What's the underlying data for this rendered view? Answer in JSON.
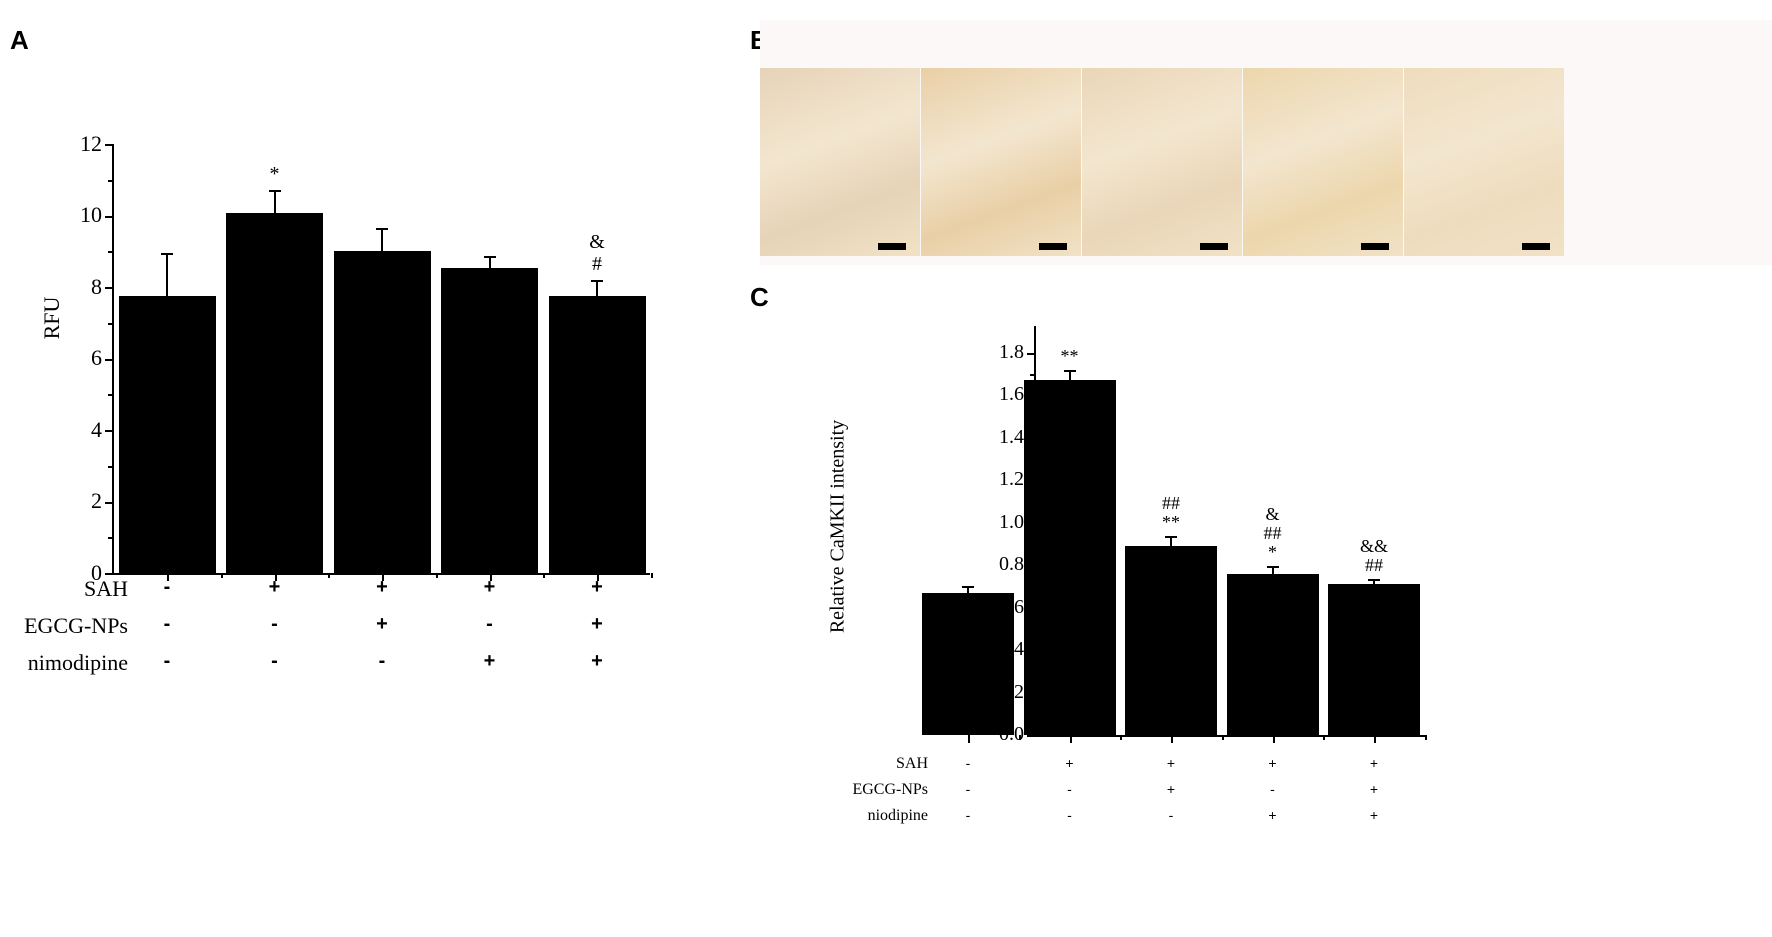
{
  "panels": {
    "A": {
      "letter": "A"
    },
    "B": {
      "letter": "B"
    },
    "C": {
      "letter": "C"
    }
  },
  "chart_data": [
    {
      "panel": "A",
      "type": "bar",
      "title": "",
      "xlabel": "",
      "ylabel": "RFU",
      "ylim": [
        0,
        12
      ],
      "yticks": [
        "0",
        "2",
        "4",
        "6",
        "8",
        "10",
        "12"
      ],
      "grid": false,
      "categories": [
        "SAH-/EGCG-NPs-/nimodipine-",
        "SAH+/EGCG-NPs-/nimodipine-",
        "SAH+/EGCG-NPs+/nimodipine-",
        "SAH+/EGCG-NPs-/nimodipine+",
        "SAH+/EGCG-NPs+/nimodipine+"
      ],
      "values": [
        7.74,
        10.08,
        9.0,
        8.54,
        7.75
      ],
      "error": [
        1.22,
        0.64,
        0.65,
        0.33,
        0.44
      ],
      "annotations": [
        [],
        [
          "*"
        ],
        [],
        [],
        [
          "&",
          "#"
        ]
      ],
      "condition_rows": [
        {
          "label": "SAH",
          "values": [
            "-",
            "+",
            "+",
            "+",
            "+"
          ]
        },
        {
          "label": "EGCG-NPs",
          "values": [
            "-",
            "-",
            "+",
            "-",
            "+"
          ]
        },
        {
          "label": "nimodipine",
          "values": [
            "-",
            "-",
            "-",
            "+",
            "+"
          ]
        }
      ]
    },
    {
      "panel": "C",
      "type": "bar",
      "title": "",
      "xlabel": "",
      "ylabel": "Relative CaMKII intensity",
      "ylim": [
        0,
        1.9
      ],
      "yticks": [
        "0.0",
        "0.2",
        "0.4",
        "0.6",
        "0.8",
        "1.0",
        "1.2",
        "1.4",
        "1.6",
        "1.8"
      ],
      "grid": false,
      "categories": [
        "SAH-/EGCG-NPs-/niodipine-",
        "SAH+/EGCG-NPs-/niodipine-",
        "SAH+/EGCG-NPs+/niodipine-",
        "SAH+/EGCG-NPs-/niodipine+",
        "SAH+/EGCG-NPs+/niodipine+"
      ],
      "values": [
        0.67,
        1.67,
        0.89,
        0.76,
        0.71
      ],
      "error": [
        0.03,
        0.05,
        0.045,
        0.035,
        0.025
      ],
      "annotations": [
        [],
        [
          "**"
        ],
        [
          "##",
          "**"
        ],
        [
          "&",
          "##",
          "*"
        ],
        [
          "&&",
          "##"
        ]
      ],
      "condition_rows": [
        {
          "label": "SAH",
          "values": [
            "-",
            "+",
            "+",
            "+",
            "+"
          ]
        },
        {
          "label": "EGCG-NPs",
          "values": [
            "-",
            "-",
            "+",
            "-",
            "+"
          ]
        },
        {
          "label": "niodipine",
          "values": [
            "-",
            "-",
            "-",
            "+",
            "+"
          ]
        }
      ]
    }
  ],
  "histology_images": [
    {
      "name": "image-1",
      "color": "#e6d3b8"
    },
    {
      "name": "image-2",
      "color": "#e9cfa6"
    },
    {
      "name": "image-3",
      "color": "#ead6b8"
    },
    {
      "name": "image-4",
      "color": "#ecd6ac"
    },
    {
      "name": "image-5",
      "color": "#eedcbd"
    }
  ]
}
